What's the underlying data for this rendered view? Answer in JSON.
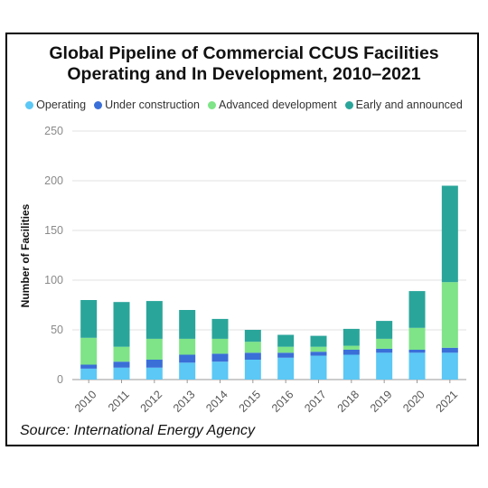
{
  "chart_data": {
    "type": "bar",
    "stacked": true,
    "title_line1": "Global Pipeline of Commercial CCUS Facilities",
    "title_line2": "Operating and In Development, 2010–2021",
    "xlabel": "",
    "ylabel": "Number of Facilities",
    "ylim": [
      0,
      250
    ],
    "yticks": [
      0,
      50,
      100,
      150,
      200,
      250
    ],
    "grid": true,
    "legend_position": "top",
    "categories": [
      "2010",
      "2011",
      "2012",
      "2013",
      "2014",
      "2015",
      "2016",
      "2017",
      "2018",
      "2019",
      "2020",
      "2021"
    ],
    "series": [
      {
        "name": "Operating",
        "color": "#5bc8f5",
        "values": [
          11,
          12,
          12,
          17,
          18,
          20,
          22,
          24,
          25,
          27,
          27,
          27
        ]
      },
      {
        "name": "Under construction",
        "color": "#3a6fd8",
        "values": [
          4,
          6,
          8,
          8,
          8,
          7,
          5,
          4,
          5,
          4,
          3,
          5
        ]
      },
      {
        "name": "Advanced development",
        "color": "#7ee487",
        "values": [
          27,
          15,
          21,
          16,
          15,
          11,
          6,
          5,
          4,
          10,
          22,
          66
        ]
      },
      {
        "name": "Early and announced",
        "color": "#2aa59a",
        "values": [
          38,
          45,
          38,
          29,
          20,
          12,
          12,
          11,
          17,
          18,
          37,
          97
        ]
      }
    ]
  },
  "source": "Source: International Energy Agency"
}
